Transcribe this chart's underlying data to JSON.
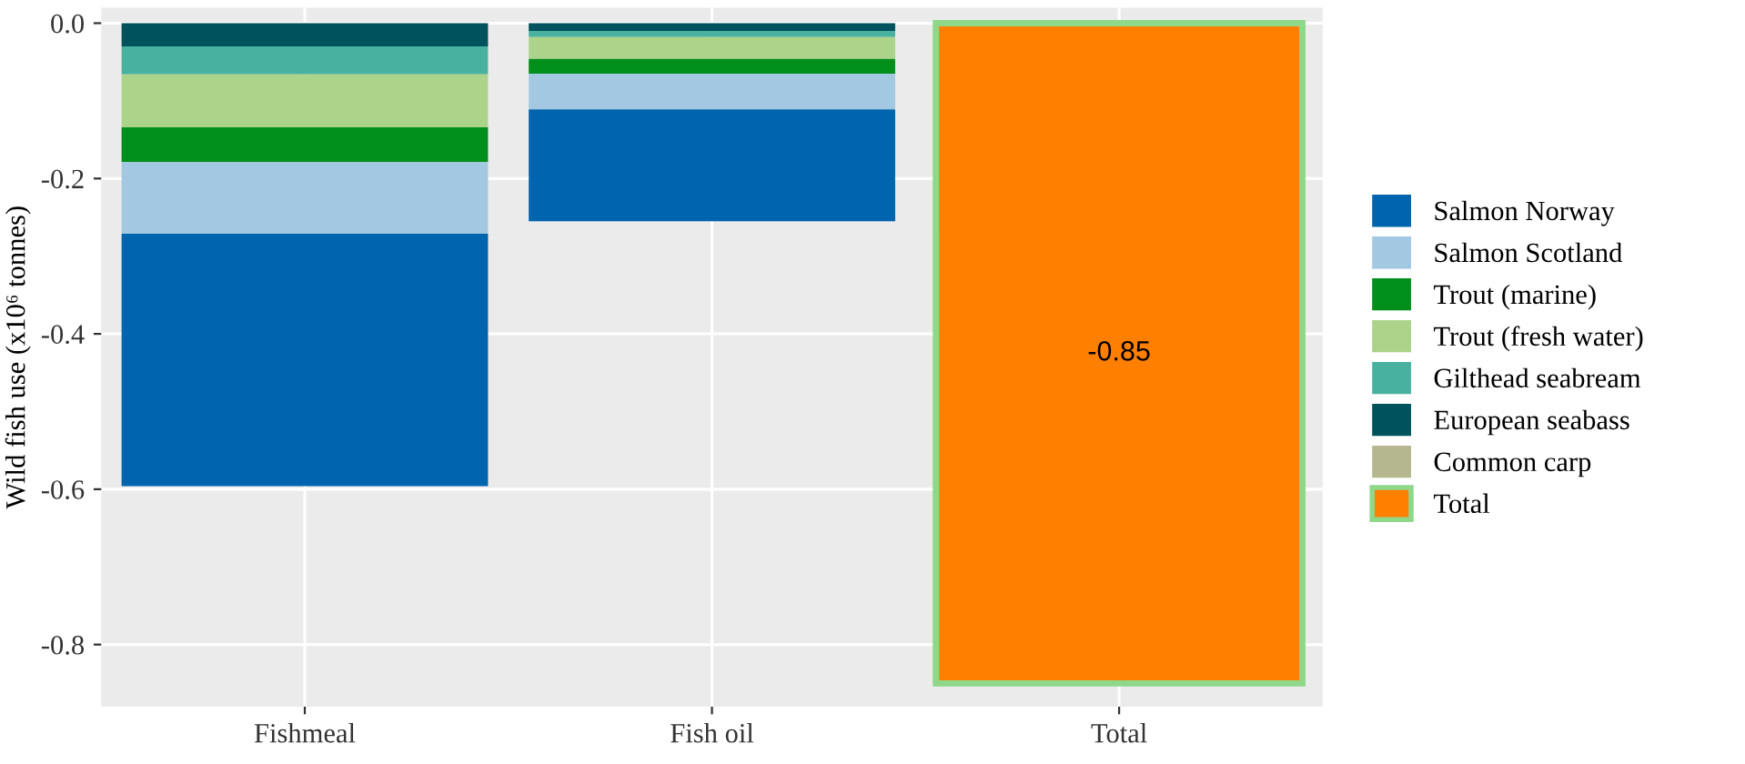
{
  "chart_data": {
    "type": "bar",
    "stacked": true,
    "ylabel": "Wild fish use (x10⁶ tonnes)",
    "categories": [
      "Fishmeal",
      "Fish oil",
      "Total"
    ],
    "series": [
      {
        "name": "Total",
        "color": "#ff7f00",
        "values": [
          null,
          null,
          -0.85
        ],
        "value_labels": [
          null,
          null,
          "-0.85"
        ]
      },
      {
        "name": "Common carp",
        "color": "#b5b88f",
        "values": [
          null,
          null,
          null
        ]
      },
      {
        "name": "European seabass",
        "color": "#00525c",
        "values": [
          -0.03,
          -0.01,
          null
        ]
      },
      {
        "name": "Gilthead seabream",
        "color": "#49b1a0",
        "values": [
          -0.036,
          -0.008,
          null
        ]
      },
      {
        "name": "Trout (fresh water)",
        "color": "#acd38a",
        "values": [
          -0.068,
          -0.028,
          null
        ]
      },
      {
        "name": "Trout (marine)",
        "color": "#008f1a",
        "values": [
          -0.045,
          -0.019,
          null
        ]
      },
      {
        "name": "Salmon Scotland",
        "color": "#a2c8e2",
        "values": [
          -0.092,
          -0.046,
          null
        ]
      },
      {
        "name": "Salmon Norway",
        "color": "#0064ae",
        "values": [
          -0.325,
          -0.144,
          null
        ]
      }
    ],
    "ylim": [
      -0.88,
      0.02
    ],
    "yticks": [
      {
        "value": 0,
        "label": "0.0"
      },
      {
        "value": -0.2,
        "label": "-0.2"
      },
      {
        "value": -0.4,
        "label": "-0.4"
      },
      {
        "value": -0.6,
        "label": "-0.6"
      },
      {
        "value": -0.8,
        "label": "-0.8"
      }
    ],
    "grid": true,
    "legend": "right"
  }
}
